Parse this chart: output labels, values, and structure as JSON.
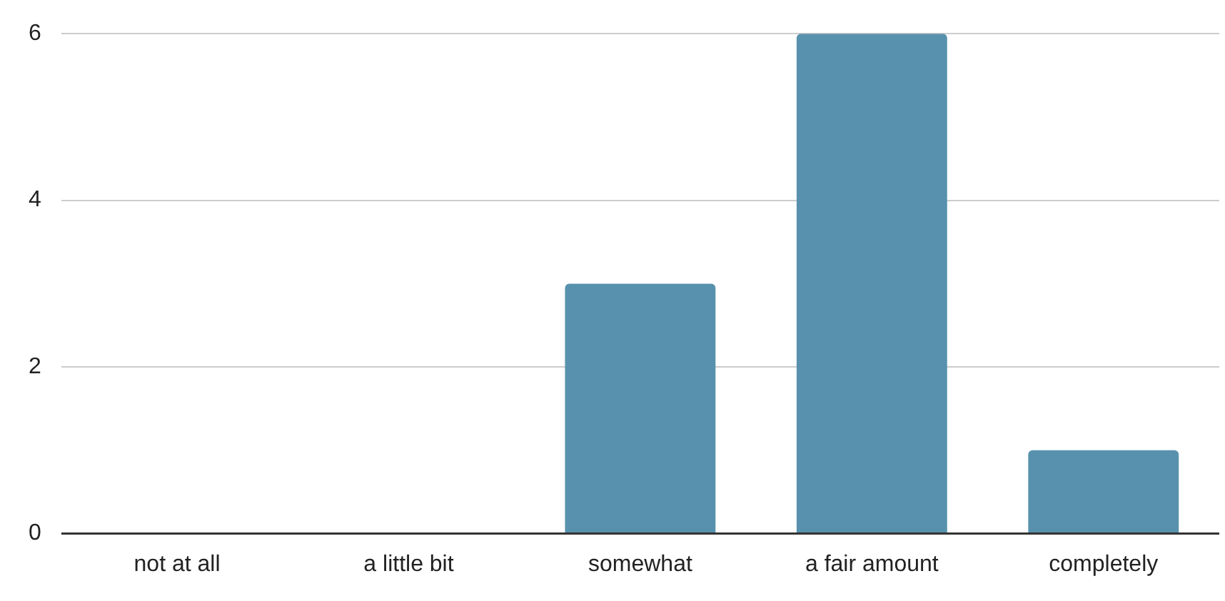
{
  "chart_data": {
    "type": "bar",
    "categories": [
      "not at all",
      "a little bit",
      "somewhat",
      "a fair amount",
      "completely"
    ],
    "values": [
      0,
      0,
      3,
      6,
      1
    ],
    "color": "#5891ad",
    "ylim": [
      0,
      6
    ],
    "yticks": [
      0,
      2,
      4,
      6
    ],
    "grid": "y",
    "legend": false
  }
}
